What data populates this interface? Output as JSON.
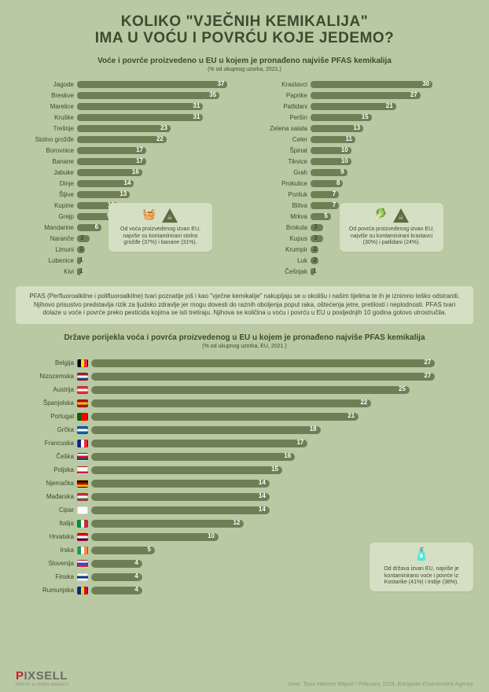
{
  "title_line1": "KOLIKO \"VJEČNIH KEMIKALIJA\"",
  "title_line2": "IMA U VOĆU I POVRĆU KOJE JEDEMO?",
  "title_fontsize": 19,
  "title_color": "#3d4a2f",
  "subtitle1": "Voće i povrće proizvedeno u EU u kojem je pronađeno najviše PFAS kemikalija",
  "subtitle1_fontsize": 10,
  "subsubtitle1": "(% od ukupnog uzorka, 2021.)",
  "subsubtitle1_fontsize": 7,
  "bar_color": "#6f7f55",
  "bar_value_color": "#ffffff",
  "label_color": "#3d4a2f",
  "label_fontsize": 8,
  "value_fontsize": 8,
  "background_color": "#b9c9a3",
  "callout_bg": "#d5dfc3",
  "max_value_top": 40,
  "fruit": [
    {
      "label": "Jagode",
      "value": 37
    },
    {
      "label": "Breskve",
      "value": 35
    },
    {
      "label": "Marelice",
      "value": 31
    },
    {
      "label": "Kruške",
      "value": 31
    },
    {
      "label": "Trešnje",
      "value": 23
    },
    {
      "label": "Stolno grožđe",
      "value": 22
    },
    {
      "label": "Borovnice",
      "value": 17
    },
    {
      "label": "Banane",
      "value": 17
    },
    {
      "label": "Jabuke",
      "value": 16
    },
    {
      "label": "Dinje",
      "value": 14
    },
    {
      "label": "Šljive",
      "value": 13
    },
    {
      "label": "Kupine",
      "value": 10
    },
    {
      "label": "Grejp",
      "value": 9
    },
    {
      "label": "Mandarine",
      "value": 6
    },
    {
      "label": "Naranče",
      "value": 3
    },
    {
      "label": "Limuni",
      "value": 2
    },
    {
      "label": "Lubenice",
      "value": 1
    },
    {
      "label": "Kivi",
      "value": 1
    }
  ],
  "veg": [
    {
      "label": "Krastavci",
      "value": 30
    },
    {
      "label": "Paprike",
      "value": 27
    },
    {
      "label": "Patlidani",
      "value": 21
    },
    {
      "label": "Peršin",
      "value": 15
    },
    {
      "label": "Zelena salata",
      "value": 13
    },
    {
      "label": "Celer",
      "value": 11
    },
    {
      "label": "Špinat",
      "value": 10
    },
    {
      "label": "Tikvice",
      "value": 10
    },
    {
      "label": "Grah",
      "value": 9
    },
    {
      "label": "Prokulice",
      "value": 8
    },
    {
      "label": "Poriluk",
      "value": 7
    },
    {
      "label": "Blitva",
      "value": 7
    },
    {
      "label": "Mrkva",
      "value": 5
    },
    {
      "label": "Brokula",
      "value": 3
    },
    {
      "label": "Kupus",
      "value": 3
    },
    {
      "label": "Krumpir",
      "value": 2
    },
    {
      "label": "Luk",
      "value": 2
    },
    {
      "label": "Češnjak",
      "value": 1
    }
  ],
  "callout_fruit": "Od voća proizvedenog izvan EU, najviše su kontaminirani stolno grožđe (37%) i banane (31%).",
  "callout_veg": "Od povrća proizvedenog izvan EU, najviše su kontaminirani krastavci (30%) i patlidani (24%).",
  "callout_fontsize": 7,
  "info_text": "PFAS (Perfluoroalkilne i polifluoroalkilne) tvari poznatije još i kao \"vječne kemikalije\" nakupljaju se u okolišu i našim tijelima te ih je iznimno teško odstraniti. Njihovo prisustvo predstavlja rizik za ljudsko zdravlje jer mogu dovesti do raznih oboljenja poput raka, oštećenja jetre, pretilosti i neplodnosti. PFAS tvari dolaze u voće i povrće preko pesticida kojima se isti tretiraju. Njihova se količina u voću i povrću u EU u posljednjih 10 godina gotovo utrostručila.",
  "info_fontsize": 8,
  "subtitle2": "Države porijekla voća i povrća proizvedenog u EU u kojem je pronađeno najviše PFAS kemikalija",
  "subsubtitle2": "(% od ukupnog uzorka, EU, 2021.)",
  "max_value_countries": 30,
  "countries": [
    {
      "label": "Belgija",
      "value": 27,
      "flag": [
        "#000000",
        "#fdda24",
        "#ef3340"
      ],
      "dir": "v"
    },
    {
      "label": "Nizozemska",
      "value": 27,
      "flag": [
        "#ae1c28",
        "#ffffff",
        "#21468b"
      ],
      "dir": "h"
    },
    {
      "label": "Austrija",
      "value": 25,
      "flag": [
        "#ed2939",
        "#ffffff",
        "#ed2939"
      ],
      "dir": "h"
    },
    {
      "label": "Španjolska",
      "value": 22,
      "flag": [
        "#aa151b",
        "#f1bf00",
        "#aa151b"
      ],
      "dir": "h"
    },
    {
      "label": "Portugal",
      "value": 21,
      "flag": [
        "#006600",
        "#ff0000",
        "#ff0000"
      ],
      "dir": "v"
    },
    {
      "label": "Grčka",
      "value": 18,
      "flag": [
        "#0d5eaf",
        "#ffffff",
        "#0d5eaf"
      ],
      "dir": "h"
    },
    {
      "label": "Francuska",
      "value": 17,
      "flag": [
        "#002395",
        "#ffffff",
        "#ed2939"
      ],
      "dir": "v"
    },
    {
      "label": "Češka",
      "value": 16,
      "flag": [
        "#ffffff",
        "#d7141a",
        "#11457e"
      ],
      "dir": "h"
    },
    {
      "label": "Poljska",
      "value": 15,
      "flag": [
        "#ffffff",
        "#ffffff",
        "#dc143c"
      ],
      "dir": "h"
    },
    {
      "label": "Njemačka",
      "value": 14,
      "flag": [
        "#000000",
        "#dd0000",
        "#ffce00"
      ],
      "dir": "h"
    },
    {
      "label": "Mađarska",
      "value": 14,
      "flag": [
        "#ce2939",
        "#ffffff",
        "#477050"
      ],
      "dir": "h"
    },
    {
      "label": "Cipar",
      "value": 14,
      "flag": [
        "#ffffff",
        "#ffffff",
        "#ffffff"
      ],
      "dir": "h"
    },
    {
      "label": "Italija",
      "value": 12,
      "flag": [
        "#009246",
        "#ffffff",
        "#ce2b37"
      ],
      "dir": "v"
    },
    {
      "label": "Hrvatska",
      "value": 10,
      "flag": [
        "#ff0000",
        "#ffffff",
        "#171796"
      ],
      "dir": "h"
    },
    {
      "label": "Irska",
      "value": 5,
      "flag": [
        "#169b62",
        "#ffffff",
        "#ff883e"
      ],
      "dir": "v"
    },
    {
      "label": "Slovenija",
      "value": 4,
      "flag": [
        "#ffffff",
        "#005ce5",
        "#ed1c24"
      ],
      "dir": "h"
    },
    {
      "label": "Finska",
      "value": 4,
      "flag": [
        "#ffffff",
        "#003580",
        "#ffffff"
      ],
      "dir": "h"
    },
    {
      "label": "Rumunjska",
      "value": 4,
      "flag": [
        "#002b7f",
        "#fcd116",
        "#ce1126"
      ],
      "dir": "v"
    }
  ],
  "callout_countries": "Od država izvan EU, najviše je kontaminirano voće i povrće iz Kostarike (41%) i Indije (38%).",
  "logo_text_p": "P",
  "logo_text_rest": "IXSELL",
  "logo_sub": "PHOTO & VIDEO AGENCY",
  "logo_fontsize": 15,
  "source": "Izvor: Toxic Harvest Report / February 2024, European Environment Agency",
  "source_fontsize": 7
}
